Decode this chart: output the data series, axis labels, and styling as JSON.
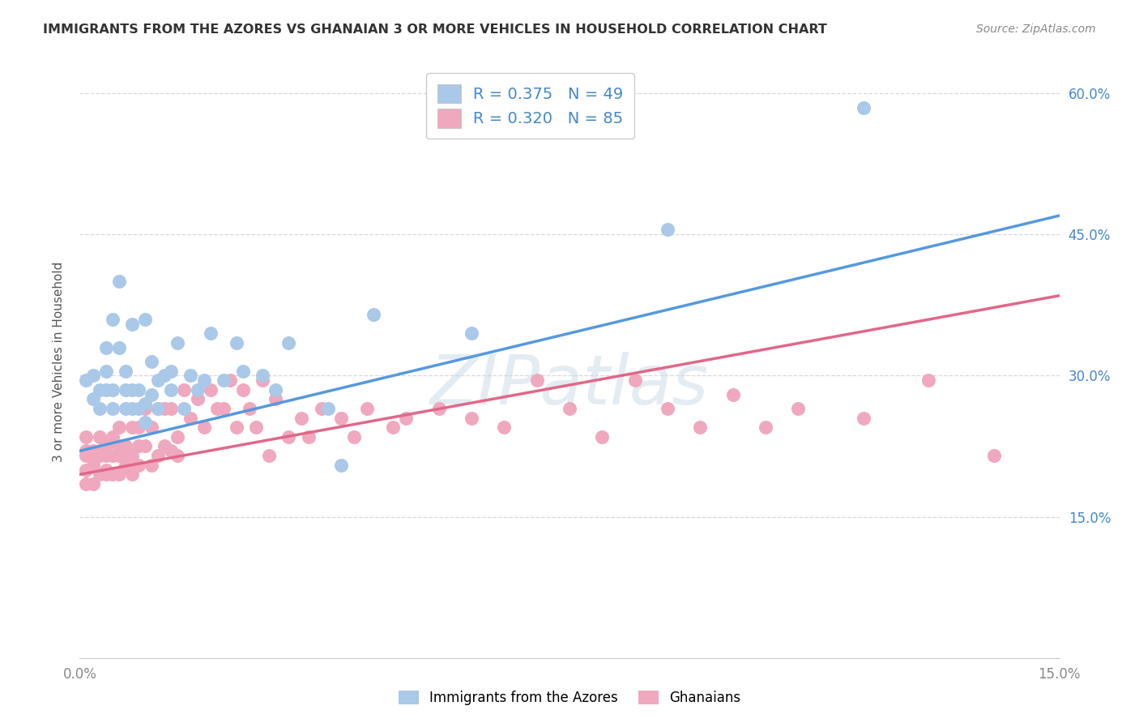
{
  "title": "IMMIGRANTS FROM THE AZORES VS GHANAIAN 3 OR MORE VEHICLES IN HOUSEHOLD CORRELATION CHART",
  "source": "Source: ZipAtlas.com",
  "ylabel": "3 or more Vehicles in Household",
  "xlim": [
    0.0,
    0.15
  ],
  "ylim": [
    0.0,
    0.63
  ],
  "yticks": [
    0.0,
    0.15,
    0.3,
    0.45,
    0.6
  ],
  "yticklabels_right": [
    "",
    "15.0%",
    "30.0%",
    "45.0%",
    "60.0%"
  ],
  "xticks": [
    0.0,
    0.05,
    0.1,
    0.15
  ],
  "xticklabels": [
    "0.0%",
    "",
    "",
    "15.0%"
  ],
  "legend_R_blue": "R = 0.375",
  "legend_N_blue": "N = 49",
  "legend_R_pink": "R = 0.320",
  "legend_N_pink": "N = 85",
  "legend_label_blue": "Immigrants from the Azores",
  "legend_label_pink": "Ghanaians",
  "blue_dot_color": "#aac8e8",
  "pink_dot_color": "#f0a8be",
  "blue_line_color": "#5599dd",
  "pink_line_color": "#e06888",
  "tick_color": "#4488cc",
  "watermark_text": "ZIPatlas",
  "watermark_color": "#c8d8e8",
  "background": "#ffffff",
  "grid_color": "#d8d8d8",
  "title_color": "#333333",
  "source_color": "#888888",
  "blue_line_x0": 0.0,
  "blue_line_y0": 0.22,
  "blue_line_x1": 0.15,
  "blue_line_y1": 0.47,
  "pink_line_x0": 0.0,
  "pink_line_y0": 0.195,
  "pink_line_x1": 0.15,
  "pink_line_y1": 0.385,
  "blue_scatter_x": [
    0.001,
    0.002,
    0.002,
    0.003,
    0.003,
    0.004,
    0.004,
    0.004,
    0.005,
    0.005,
    0.005,
    0.006,
    0.006,
    0.007,
    0.007,
    0.007,
    0.008,
    0.008,
    0.008,
    0.009,
    0.009,
    0.01,
    0.01,
    0.01,
    0.011,
    0.011,
    0.012,
    0.012,
    0.013,
    0.014,
    0.014,
    0.015,
    0.016,
    0.017,
    0.018,
    0.019,
    0.02,
    0.022,
    0.024,
    0.025,
    0.028,
    0.03,
    0.032,
    0.038,
    0.04,
    0.045,
    0.06,
    0.09,
    0.12
  ],
  "blue_scatter_y": [
    0.295,
    0.275,
    0.3,
    0.265,
    0.285,
    0.285,
    0.305,
    0.33,
    0.265,
    0.285,
    0.36,
    0.4,
    0.33,
    0.265,
    0.285,
    0.305,
    0.265,
    0.285,
    0.355,
    0.265,
    0.285,
    0.25,
    0.27,
    0.36,
    0.315,
    0.28,
    0.265,
    0.295,
    0.3,
    0.305,
    0.285,
    0.335,
    0.265,
    0.3,
    0.285,
    0.295,
    0.345,
    0.295,
    0.335,
    0.305,
    0.3,
    0.285,
    0.335,
    0.265,
    0.205,
    0.365,
    0.345,
    0.455,
    0.585
  ],
  "pink_scatter_x": [
    0.001,
    0.001,
    0.001,
    0.001,
    0.001,
    0.002,
    0.002,
    0.002,
    0.002,
    0.003,
    0.003,
    0.003,
    0.003,
    0.004,
    0.004,
    0.004,
    0.004,
    0.005,
    0.005,
    0.005,
    0.005,
    0.006,
    0.006,
    0.006,
    0.006,
    0.007,
    0.007,
    0.007,
    0.008,
    0.008,
    0.008,
    0.009,
    0.009,
    0.009,
    0.01,
    0.01,
    0.011,
    0.011,
    0.012,
    0.012,
    0.013,
    0.013,
    0.014,
    0.014,
    0.015,
    0.015,
    0.016,
    0.017,
    0.018,
    0.019,
    0.02,
    0.021,
    0.022,
    0.023,
    0.024,
    0.025,
    0.026,
    0.027,
    0.028,
    0.029,
    0.03,
    0.032,
    0.034,
    0.035,
    0.037,
    0.04,
    0.042,
    0.044,
    0.048,
    0.05,
    0.055,
    0.06,
    0.065,
    0.07,
    0.075,
    0.08,
    0.085,
    0.09,
    0.095,
    0.1,
    0.105,
    0.11,
    0.12,
    0.13,
    0.14
  ],
  "pink_scatter_y": [
    0.215,
    0.235,
    0.22,
    0.2,
    0.185,
    0.22,
    0.205,
    0.185,
    0.215,
    0.215,
    0.195,
    0.22,
    0.235,
    0.2,
    0.215,
    0.195,
    0.225,
    0.215,
    0.195,
    0.215,
    0.235,
    0.195,
    0.215,
    0.225,
    0.245,
    0.22,
    0.205,
    0.225,
    0.215,
    0.195,
    0.245,
    0.225,
    0.205,
    0.245,
    0.225,
    0.265,
    0.205,
    0.245,
    0.215,
    0.265,
    0.225,
    0.265,
    0.22,
    0.265,
    0.215,
    0.235,
    0.285,
    0.255,
    0.275,
    0.245,
    0.285,
    0.265,
    0.265,
    0.295,
    0.245,
    0.285,
    0.265,
    0.245,
    0.295,
    0.215,
    0.275,
    0.235,
    0.255,
    0.235,
    0.265,
    0.255,
    0.235,
    0.265,
    0.245,
    0.255,
    0.265,
    0.255,
    0.245,
    0.295,
    0.265,
    0.235,
    0.295,
    0.265,
    0.245,
    0.28,
    0.245,
    0.265,
    0.255,
    0.295,
    0.215
  ]
}
